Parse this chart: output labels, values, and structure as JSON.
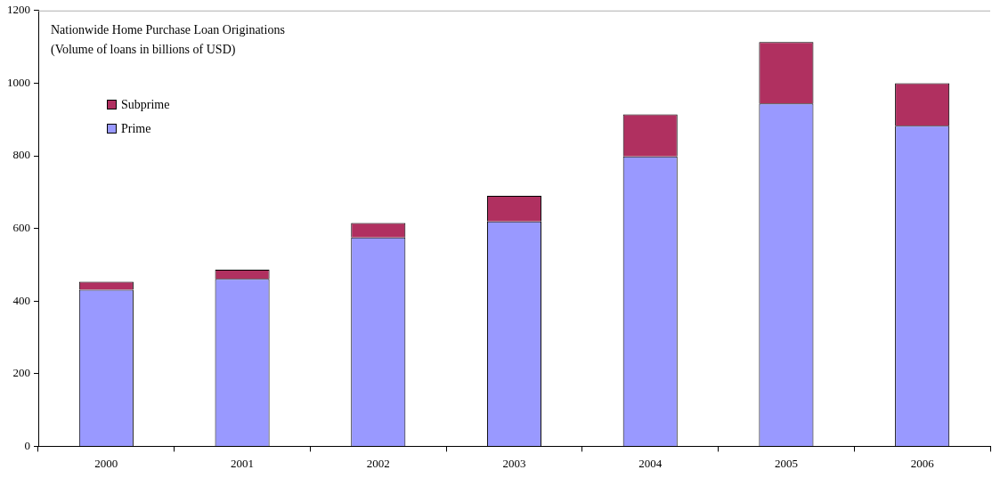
{
  "chart_data": {
    "type": "bar",
    "title": "Nationwide Home Purchase Loan Originations",
    "subtitle": "(Volume of loans in billions of USD)",
    "categories": [
      "2000",
      "2001",
      "2002",
      "2003",
      "2004",
      "2005",
      "2006"
    ],
    "stacked": true,
    "series": [
      {
        "name": "Prime",
        "color": "#9999ff",
        "values": [
          431,
          461,
          575,
          619,
          798,
          944,
          883
        ]
      },
      {
        "name": "Subprime",
        "color": "#b03060",
        "values": [
          22,
          25,
          40,
          71,
          116,
          169,
          117
        ]
      }
    ],
    "ylim": [
      0,
      1200
    ],
    "yticks": [
      0,
      200,
      400,
      600,
      800,
      1000,
      1200
    ],
    "grid": false,
    "legend": "top left"
  }
}
